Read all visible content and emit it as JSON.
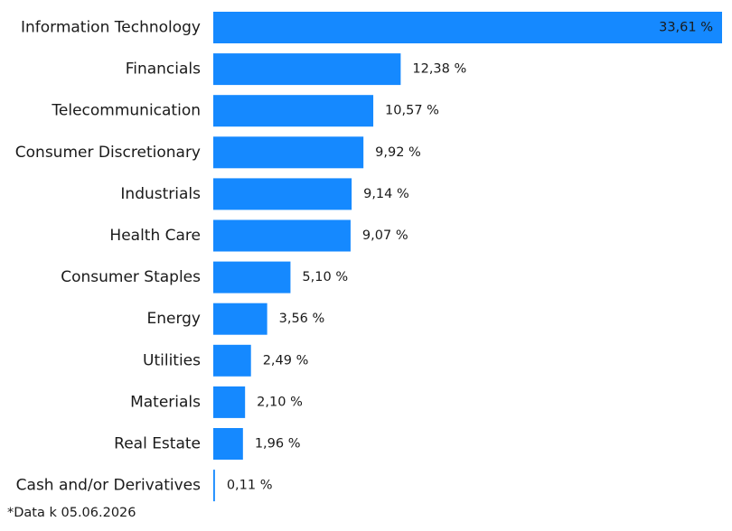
{
  "chart_data": {
    "type": "bar",
    "orientation": "horizontal",
    "bar_color": "#1589FF",
    "categories": [
      "Information Technology",
      "Financials",
      "Telecommunication",
      "Consumer Discretionary",
      "Industrials",
      "Health Care",
      "Consumer Staples",
      "Energy",
      "Utilities",
      "Materials",
      "Real Estate",
      "Cash and/or Derivatives"
    ],
    "values": [
      33.61,
      12.38,
      10.57,
      9.92,
      9.14,
      9.07,
      5.1,
      3.56,
      2.49,
      2.1,
      1.96,
      0.11
    ],
    "value_labels": [
      "33,61 %",
      "12,38 %",
      "10,57 %",
      "9,92 %",
      "9,14 %",
      "9,07 %",
      "5,10 %",
      "3,56 %",
      "2,49 %",
      "2,10 %",
      "1,96 %",
      "0,11 %"
    ],
    "xlim": [
      0,
      33.61
    ]
  },
  "footnote": "*Data k 05.06.2026"
}
